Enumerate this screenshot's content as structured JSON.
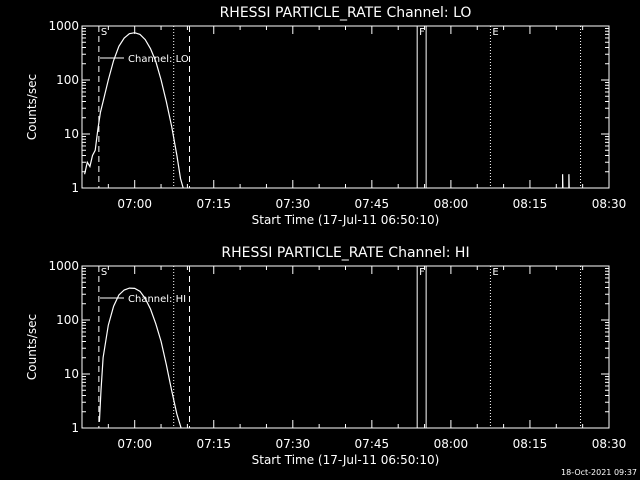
{
  "chart_data": [
    {
      "type": "line",
      "title": "RHESSI PARTICLE_RATE Channel: LO",
      "xlabel": "Start Time (17-Jul-11 06:50:10)",
      "ylabel": "Counts/sec",
      "yscale": "log",
      "xlim_minutes": [
        0,
        100
      ],
      "ylim": [
        1,
        1000
      ],
      "x_ticks": [
        {
          "minute": 10,
          "label": "07:00"
        },
        {
          "minute": 25,
          "label": "07:15"
        },
        {
          "minute": 40,
          "label": "07:30"
        },
        {
          "minute": 55,
          "label": "07:45"
        },
        {
          "minute": 70,
          "label": "08:00"
        },
        {
          "minute": 85,
          "label": "08:15"
        },
        {
          "minute": 100,
          "label": "08:30"
        }
      ],
      "y_ticks": [
        {
          "value": 1,
          "label": "1"
        },
        {
          "value": 10,
          "label": "10"
        },
        {
          "value": 100,
          "label": "100"
        },
        {
          "value": 1000,
          "label": "1000"
        }
      ],
      "legend": {
        "label": "Channel: LO",
        "position": "top-left"
      },
      "markers": [
        {
          "minute": 3.2,
          "label": "S",
          "style": "dashed"
        },
        {
          "minute": 17.4,
          "label": "",
          "style": "dotted"
        },
        {
          "minute": 20.4,
          "label": "",
          "style": "dashed"
        },
        {
          "minute": 63.6,
          "label": "F",
          "style": "solid"
        },
        {
          "minute": 65.3,
          "label": "",
          "style": "solid"
        },
        {
          "minute": 77.5,
          "label": "E",
          "style": "dotted"
        },
        {
          "minute": 94.6,
          "label": "",
          "style": "dotted"
        }
      ],
      "series": [
        {
          "name": "Channel: LO",
          "segments": [
            [
              {
                "minute": 0.5,
                "value": 1.8
              },
              {
                "minute": 1.0,
                "value": 3.0
              },
              {
                "minute": 1.5,
                "value": 2.5
              },
              {
                "minute": 2.0,
                "value": 4.0
              },
              {
                "minute": 2.5,
                "value": 5.0
              },
              {
                "minute": 3.0,
                "value": 12
              },
              {
                "minute": 3.5,
                "value": 25
              },
              {
                "minute": 4.0,
                "value": 40
              },
              {
                "minute": 5.0,
                "value": 100
              },
              {
                "minute": 6.0,
                "value": 230
              },
              {
                "minute": 7.0,
                "value": 420
              },
              {
                "minute": 8.0,
                "value": 600
              },
              {
                "minute": 9.0,
                "value": 720
              },
              {
                "minute": 10.0,
                "value": 750
              },
              {
                "minute": 11.0,
                "value": 700
              },
              {
                "minute": 12.0,
                "value": 560
              },
              {
                "minute": 13.0,
                "value": 380
              },
              {
                "minute": 14.0,
                "value": 220
              },
              {
                "minute": 15.0,
                "value": 100
              },
              {
                "minute": 16.0,
                "value": 40
              },
              {
                "minute": 17.0,
                "value": 14
              },
              {
                "minute": 18.0,
                "value": 4
              },
              {
                "minute": 18.7,
                "value": 1.5
              },
              {
                "minute": 19.2,
                "value": 1
              }
            ],
            [
              {
                "minute": 91.2,
                "value": 1
              },
              {
                "minute": 91.2,
                "value": 1.8
              },
              {
                "minute": 91.25,
                "value": 1
              }
            ],
            [
              {
                "minute": 92.4,
                "value": 1
              },
              {
                "minute": 92.4,
                "value": 1.8
              },
              {
                "minute": 92.45,
                "value": 1
              }
            ]
          ]
        }
      ]
    },
    {
      "type": "line",
      "title": "RHESSI PARTICLE_RATE Channel: HI",
      "xlabel": "Start Time (17-Jul-11 06:50:10)",
      "ylabel": "Counts/sec",
      "yscale": "log",
      "xlim_minutes": [
        0,
        100
      ],
      "ylim": [
        1,
        1000
      ],
      "x_ticks": [
        {
          "minute": 10,
          "label": "07:00"
        },
        {
          "minute": 25,
          "label": "07:15"
        },
        {
          "minute": 40,
          "label": "07:30"
        },
        {
          "minute": 55,
          "label": "07:45"
        },
        {
          "minute": 70,
          "label": "08:00"
        },
        {
          "minute": 85,
          "label": "08:15"
        },
        {
          "minute": 100,
          "label": "08:30"
        }
      ],
      "y_ticks": [
        {
          "value": 1,
          "label": "1"
        },
        {
          "value": 10,
          "label": "10"
        },
        {
          "value": 100,
          "label": "100"
        },
        {
          "value": 1000,
          "label": "1000"
        }
      ],
      "legend": {
        "label": "Channel: HI",
        "position": "top-left"
      },
      "markers": [
        {
          "minute": 3.2,
          "label": "S",
          "style": "dashed"
        },
        {
          "minute": 17.4,
          "label": "",
          "style": "dotted"
        },
        {
          "minute": 20.4,
          "label": "",
          "style": "dashed"
        },
        {
          "minute": 63.6,
          "label": "F",
          "style": "solid"
        },
        {
          "minute": 65.3,
          "label": "",
          "style": "solid"
        },
        {
          "minute": 77.5,
          "label": "E",
          "style": "dotted"
        },
        {
          "minute": 94.6,
          "label": "",
          "style": "dotted"
        }
      ],
      "series": [
        {
          "name": "Channel: HI",
          "segments": [
            [
              {
                "minute": 3.3,
                "value": 1.3
              },
              {
                "minute": 3.6,
                "value": 5
              },
              {
                "minute": 4.0,
                "value": 20
              },
              {
                "minute": 5.0,
                "value": 80
              },
              {
                "minute": 6.0,
                "value": 180
              },
              {
                "minute": 7.0,
                "value": 290
              },
              {
                "minute": 8.0,
                "value": 360
              },
              {
                "minute": 9.0,
                "value": 390
              },
              {
                "minute": 10.0,
                "value": 385
              },
              {
                "minute": 11.0,
                "value": 340
              },
              {
                "minute": 12.0,
                "value": 250
              },
              {
                "minute": 13.0,
                "value": 160
              },
              {
                "minute": 14.0,
                "value": 85
              },
              {
                "minute": 15.0,
                "value": 40
              },
              {
                "minute": 16.0,
                "value": 15
              },
              {
                "minute": 17.0,
                "value": 5
              },
              {
                "minute": 18.0,
                "value": 1.8
              },
              {
                "minute": 18.8,
                "value": 1
              }
            ]
          ]
        }
      ]
    }
  ],
  "footer": {
    "timestamp": "18-Oct-2021 09:37"
  }
}
